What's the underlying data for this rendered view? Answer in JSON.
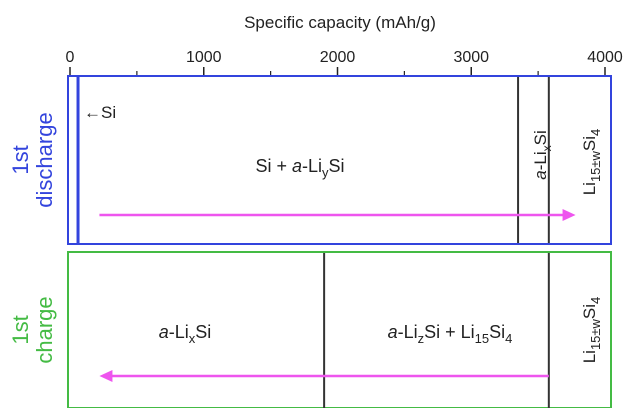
{
  "axis": {
    "title": "Specific capacity (mAh/g)",
    "min": 0,
    "max": 4000,
    "major_ticks": [
      0,
      1000,
      2000,
      3000,
      4000
    ],
    "minor_ticks": [
      500,
      1500,
      2500,
      3500
    ],
    "tick_labels": [
      "0",
      "1000",
      "2000",
      "3000",
      "4000"
    ]
  },
  "colors": {
    "discharge": "#3344dd",
    "charge": "#44bb44",
    "arrow": "#ee55ee",
    "divider": "#333333"
  },
  "discharge": {
    "side_label_line1": "1st",
    "side_label_line2": "discharge",
    "si_label": "Si",
    "start_line": 60,
    "dividers": [
      3350,
      3580
    ],
    "arrow": {
      "from": 220,
      "to": 3780,
      "direction": "right"
    },
    "regions": {
      "main": {
        "prefix": "Si + ",
        "italic": "a",
        "rest": "-Li",
        "sub": "y",
        "tail": "Si"
      },
      "alix": {
        "italic": "a",
        "rest": "-Li",
        "sub": "x",
        "tail": "Si"
      },
      "li15": {
        "base": "Li",
        "sub": "15±w",
        "tail": "Si",
        "sub2": "4"
      }
    }
  },
  "charge": {
    "side_label_line1": "1st",
    "side_label_line2": "charge",
    "dividers": [
      1900,
      3580
    ],
    "arrow": {
      "from": 3580,
      "to": 220,
      "direction": "left"
    },
    "regions": {
      "alix": {
        "italic": "a",
        "rest": "-Li",
        "sub": "x",
        "tail": "Si"
      },
      "mixed": {
        "italic": "a",
        "rest": "-Li",
        "sub": "z",
        "tail": "Si + Li",
        "sub2": "15",
        "tail2": "Si",
        "sub3": "4"
      },
      "li15": {
        "base": "Li",
        "sub": "15±w",
        "tail": "Si",
        "sub2": "4"
      }
    }
  }
}
